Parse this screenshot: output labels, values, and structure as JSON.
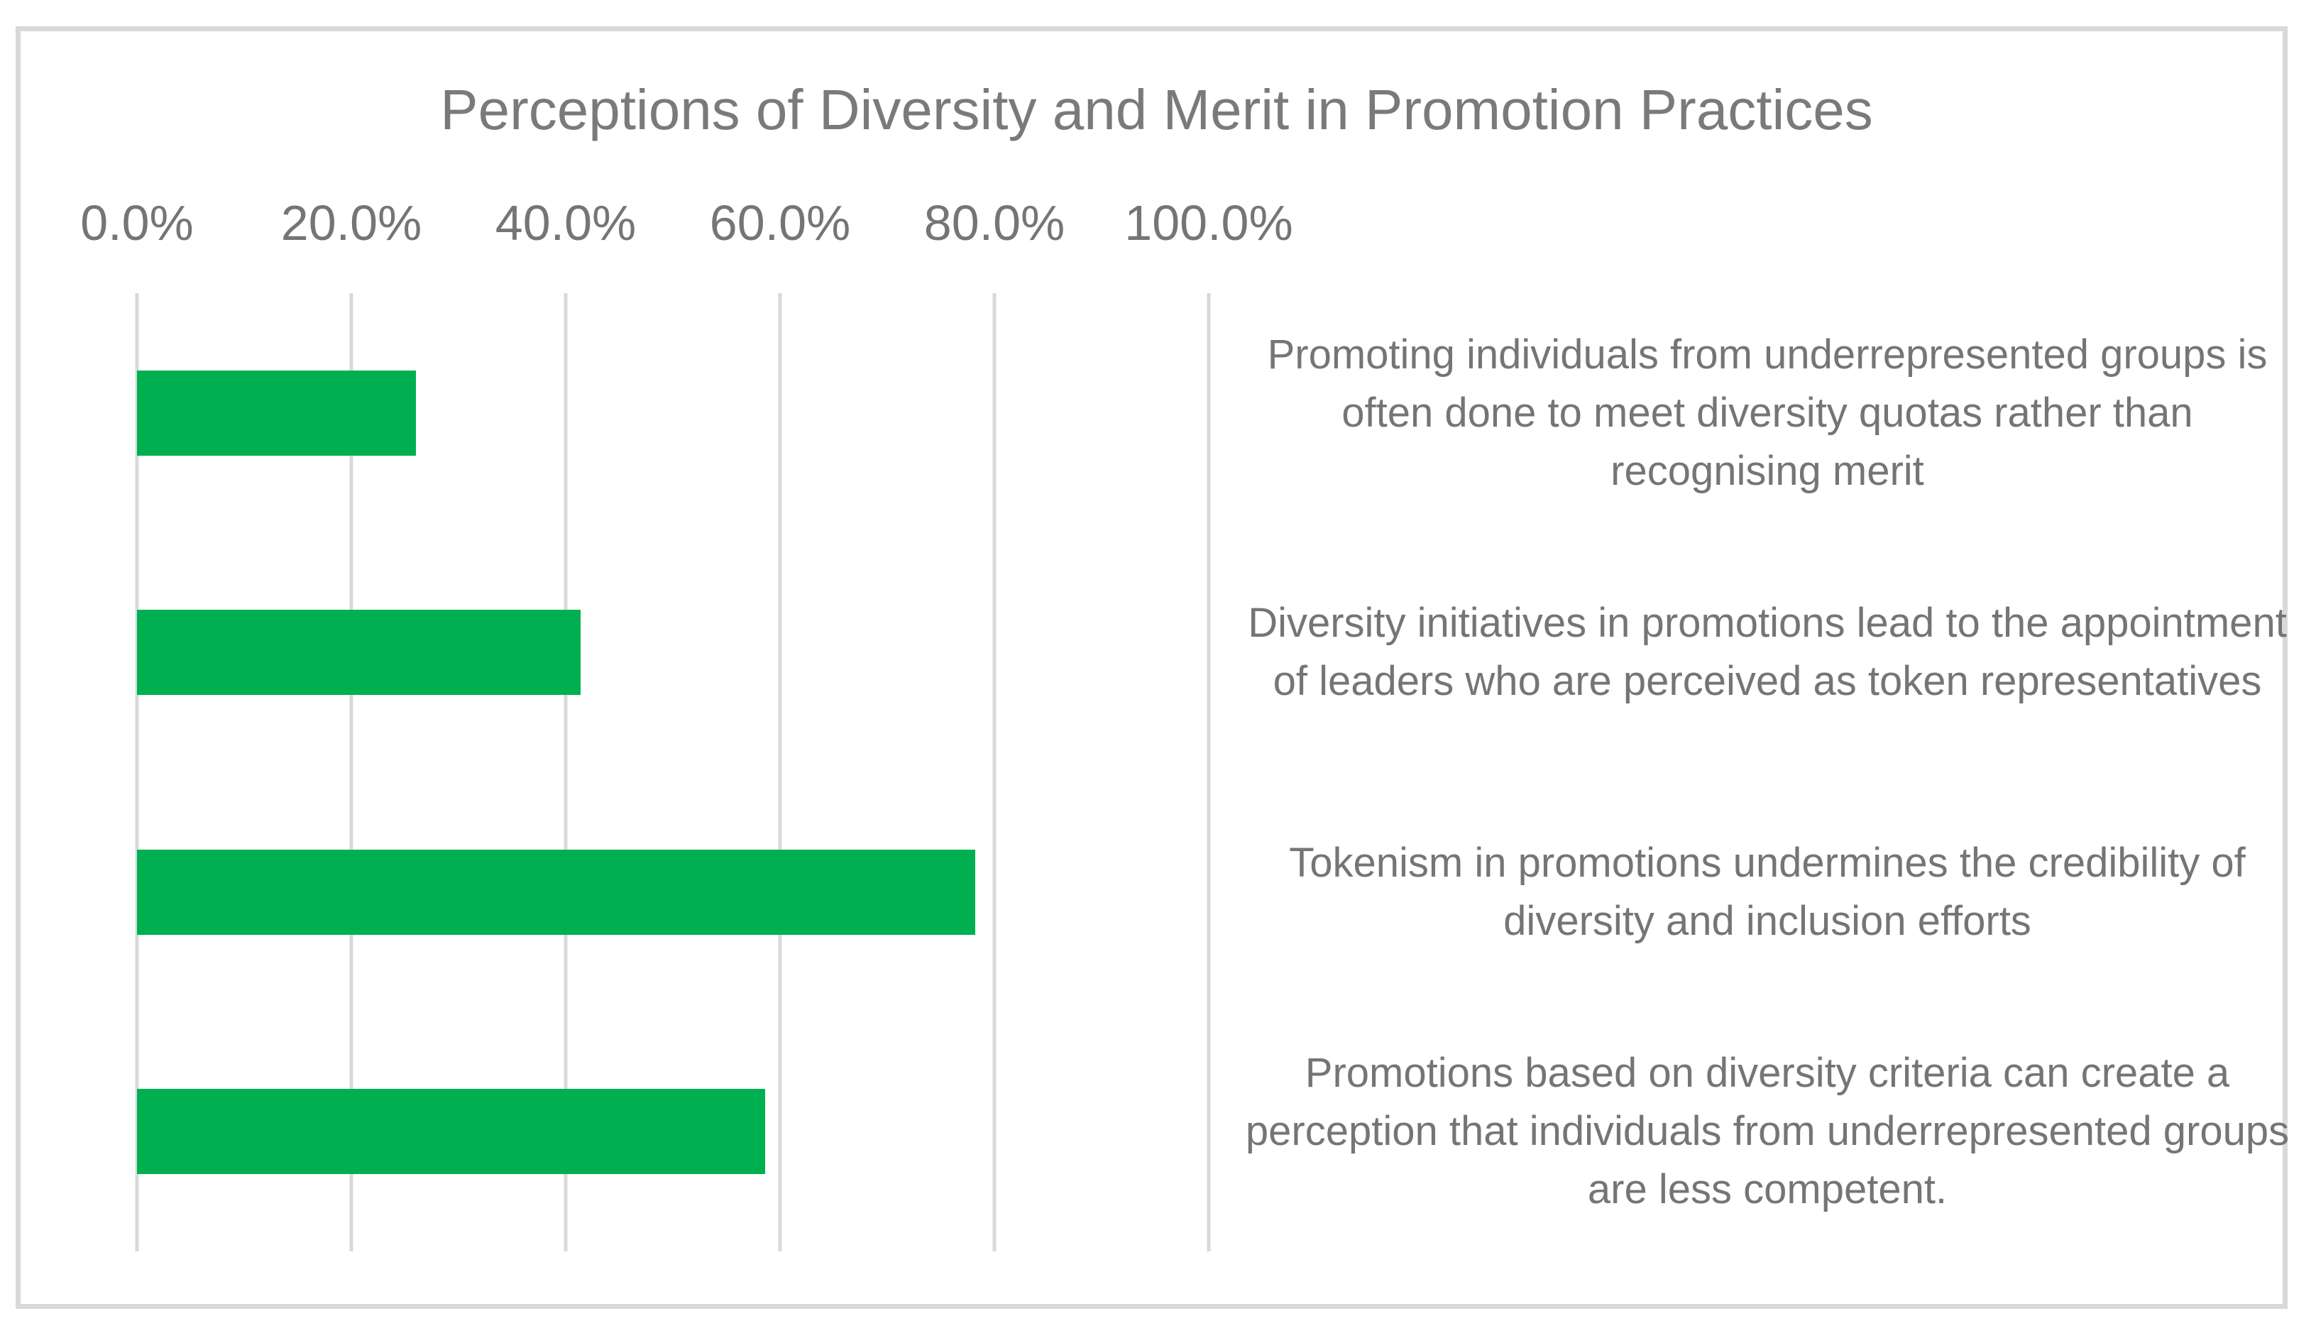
{
  "chart_data": {
    "type": "bar",
    "orientation": "horizontal",
    "title": "Perceptions of Diversity and Merit in Promotion Practices",
    "categories": [
      "Promoting individuals from underrepresented groups is often done to meet diversity quotas rather than recognising merit",
      "Diversity initiatives in promotions lead to the appointment of leaders who are perceived as token representatives",
      "Tokenism in promotions undermines the credibility of diversity and inclusion efforts",
      "Promotions based on diversity criteria can create a perception that individuals from underrepresented groups are less competent."
    ],
    "values": [
      26.0,
      41.4,
      78.2,
      58.6
    ],
    "value_unit": "%",
    "x_axis": {
      "position": "top",
      "ticks": [
        "0.0%",
        "20.0%",
        "40.0%",
        "60.0%",
        "80.0%",
        "100.0%"
      ],
      "min": 0,
      "max": 100
    },
    "legend": "none",
    "grid": "vertical-only",
    "colors": {
      "bar": "#00b050",
      "gridline": "#d9d9d9",
      "frame_border": "#d9d9d9",
      "title_text": "#7a7a7a",
      "axis_text": "#757575",
      "category_text": "#757575",
      "background": "#ffffff"
    }
  }
}
